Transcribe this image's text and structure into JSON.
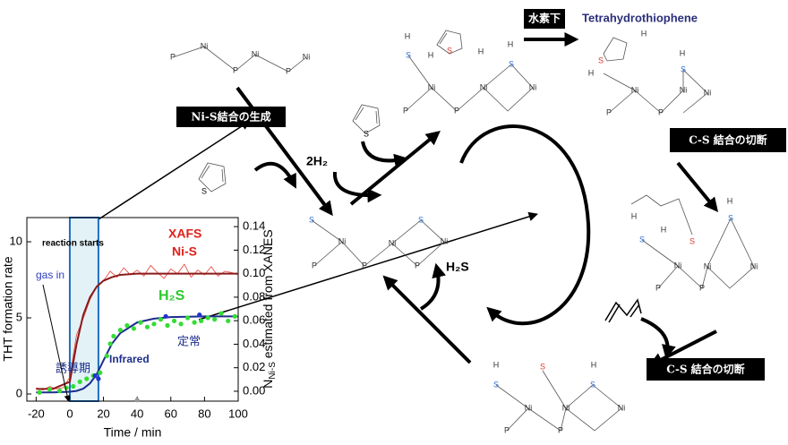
{
  "labels": {
    "hydrogen": "水素下",
    "tht": "Tetrahydrothiophene",
    "nis_formation": "Ni-S結合の生成",
    "cs_cleavage_1": "C-S 結合の切断",
    "cs_cleavage_2": "C-S 結合の切断",
    "h2": "2H₂",
    "h2s": "H₂S"
  },
  "thiophenes": [
    {
      "atom": "S"
    },
    {
      "atom": "S"
    }
  ],
  "molecules": [
    {
      "atoms": [
        "P",
        "Ni",
        "P",
        "Ni",
        "P",
        "Ni"
      ]
    },
    {
      "atoms": [
        "S",
        "Ni",
        "P",
        "P",
        "Ni",
        "S",
        "Ni",
        "P"
      ]
    },
    {
      "atoms": [
        "H",
        "S",
        "Ni",
        "P",
        "P",
        "Ni",
        "S",
        "H",
        "Ni",
        "S",
        "H",
        "H"
      ]
    },
    {
      "atoms": [
        "H",
        "S",
        "H",
        "Ni",
        "P",
        "P",
        "Ni",
        "S",
        "H",
        "Ni"
      ]
    },
    {
      "atoms": [
        "H",
        "H",
        "S",
        "S",
        "Ni",
        "P",
        "P",
        "Ni",
        "S",
        "H",
        "Ni"
      ]
    },
    {
      "atoms": [
        "H",
        "S",
        "Ni",
        "P",
        "P",
        "S",
        "Ni",
        "S",
        "H",
        "Ni"
      ]
    }
  ],
  "chart": {
    "xlabel": "Time / min",
    "ylabel": "THT formation rate",
    "y2label": {
      "main": "N",
      "sub": "Ni-S",
      "rest": " estimated from XANES"
    },
    "xlim": [
      -25.5,
      100
    ],
    "ylim": [
      -0.47,
      11.59
    ],
    "y2lim": [
      -0.0084,
      0.1477
    ],
    "xticks": [
      -20,
      0,
      20,
      40,
      60,
      80,
      100
    ],
    "yticks": [
      0,
      5,
      10
    ],
    "y2ticks": [
      {
        "value": 0,
        "label": "0.00"
      },
      0.02,
      0.04,
      0.06,
      0.08,
      {
        "value": 0.1,
        "label": "0.10"
      },
      0.12,
      0.14
    ],
    "highlight_range": [
      0,
      17
    ],
    "annotations": {
      "reaction_starts": "reaction starts",
      "gas_in": "gas in",
      "xafs": "XAFS",
      "nis": "Ni-S",
      "h2s": "H₂S",
      "infrared": "Infrared",
      "steady": "定常",
      "induction": "誘導期"
    },
    "series": [
      {
        "color": "#e8413a",
        "style": "line",
        "width": 0.8,
        "axis": "y2",
        "x": [
          -20,
          -16,
          -12,
          -8,
          -4,
          0,
          4,
          8,
          12,
          16,
          20,
          24,
          28,
          32,
          36,
          40,
          44,
          48,
          52,
          56,
          60,
          64,
          68,
          72,
          76,
          80,
          84,
          88,
          92,
          96,
          100
        ],
        "values": [
          0.003,
          0.001,
          0.004,
          0.002,
          0.003,
          0.012,
          0.048,
          0.062,
          0.078,
          0.089,
          0.094,
          0.102,
          0.097,
          0.105,
          0.099,
          0.103,
          0.098,
          0.107,
          0.101,
          0.096,
          0.104,
          0.1,
          0.108,
          0.097,
          0.103,
          0.099,
          0.106,
          0.098,
          0.102,
          0.101,
          0.099
        ]
      },
      {
        "color": "#8b1a1a",
        "style": "line",
        "width": 2,
        "axis": "y2",
        "x": [
          -20,
          -10,
          0,
          4,
          8,
          12,
          16,
          20,
          25,
          30,
          40,
          60,
          80,
          100
        ],
        "values": [
          0.002,
          0.002,
          0.008,
          0.04,
          0.065,
          0.08,
          0.089,
          0.094,
          0.097,
          0.099,
          0.1,
          0.1,
          0.1,
          0.1
        ]
      },
      {
        "color": "#1c2d8c",
        "style": "line",
        "width": 2,
        "x": [
          -20,
          -10,
          0,
          4,
          8,
          12,
          16,
          20,
          25,
          30,
          40,
          50,
          60,
          80,
          100
        ],
        "values": [
          0.1,
          0.1,
          0.15,
          0.2,
          0.35,
          0.7,
          1.3,
          2.2,
          3.3,
          4.0,
          4.7,
          4.95,
          5.05,
          5.1,
          5.1
        ]
      },
      {
        "color": "#33dd33",
        "style": "points",
        "x": [
          -18,
          -12,
          -6,
          -2,
          2,
          6,
          10,
          14,
          18,
          22,
          24,
          26,
          30,
          34,
          38,
          42,
          46,
          50,
          54,
          58,
          62,
          66,
          70,
          74,
          78,
          82,
          86,
          90,
          94,
          98
        ],
        "values": [
          0.1,
          0.3,
          0.2,
          0.4,
          0.5,
          0.8,
          1.0,
          1.2,
          1.4,
          2.5,
          3.3,
          3.8,
          4.2,
          4.5,
          4.3,
          4.7,
          4.4,
          4.6,
          4.9,
          4.5,
          4.8,
          4.6,
          5.0,
          4.7,
          4.8,
          5.0,
          4.9,
          5.3,
          4.8,
          5.1
        ]
      },
      {
        "color": "#2233cc",
        "style": "points",
        "x": [
          15,
          17,
          57,
          77
        ],
        "values": [
          1.2,
          1.0,
          5.1,
          5.2
        ]
      },
      {
        "color": "#999999",
        "style": "points",
        "x": [
          40
        ],
        "values": [
          -0.4
        ]
      }
    ]
  }
}
